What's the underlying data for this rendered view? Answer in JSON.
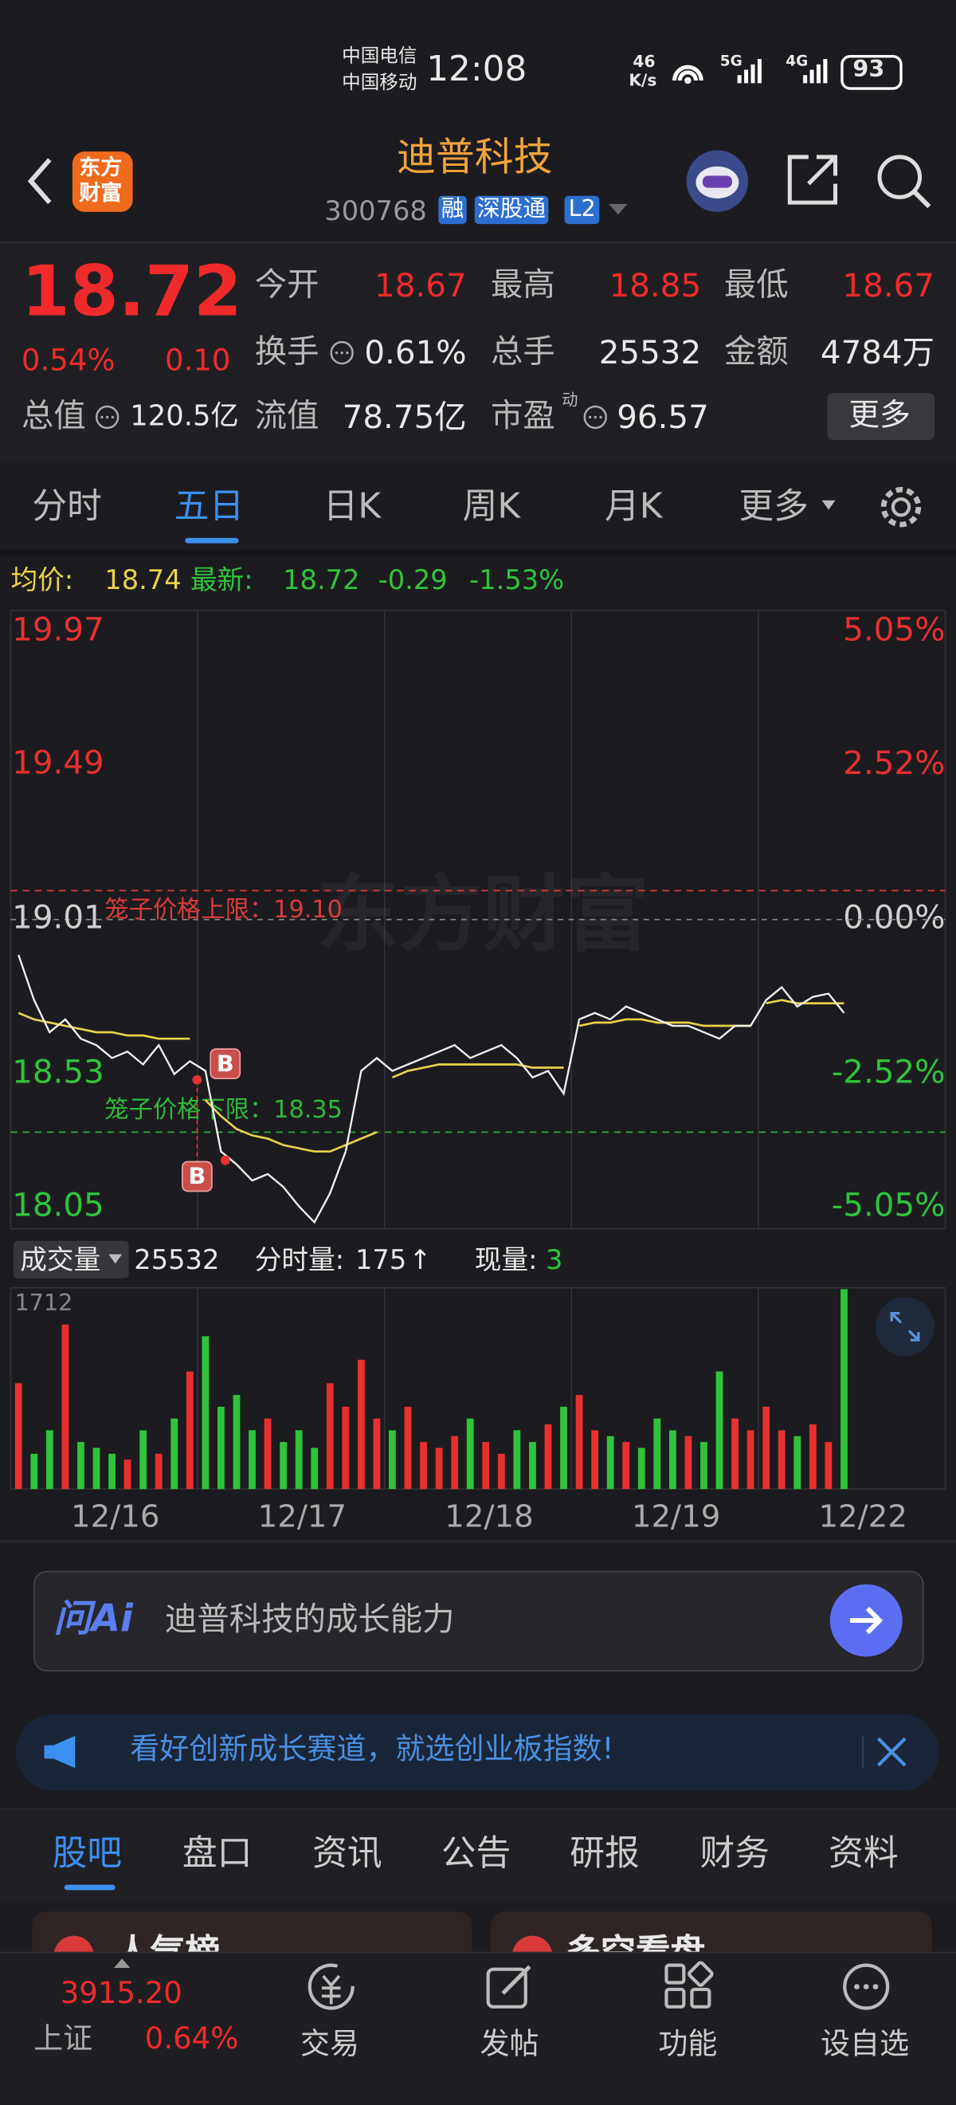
{
  "status_bar": {
    "carrier_1": "中国电信",
    "carrier_2": "中国移动",
    "time": "12:08",
    "speed": "46",
    "speed_unit": "K/s",
    "network_1": "5G",
    "network_2": "4G",
    "battery": "93"
  },
  "header": {
    "logo_1": "东方",
    "logo_2": "财富",
    "title": "迪普科技",
    "code": "300768",
    "badges": [
      "融",
      "深股通",
      "L2"
    ]
  },
  "quote": {
    "price": "18.72",
    "change_pct": "0.54%",
    "change": "0.10",
    "open_label": "今开",
    "open": "18.67",
    "high_label": "最高",
    "high": "18.85",
    "low_label": "最低",
    "low": "18.67",
    "turnover_label": "换手",
    "turnover": "0.61%",
    "volume_label": "总手",
    "volume": "25532",
    "amount_label": "金额",
    "amount": "4784万",
    "cap_label": "总值",
    "cap": "120.5亿",
    "float_label": "流值",
    "float": "78.75亿",
    "pe_label": "市盈",
    "pe_sup": "动",
    "pe": "96.57",
    "more": "更多"
  },
  "tabs": {
    "items": [
      "分时",
      "五日",
      "日K",
      "周K",
      "月K",
      "更多"
    ]
  },
  "chart_data": {
    "type": "line",
    "avg_label": "均价:",
    "avg_value": "18.74",
    "last_label": "最新:",
    "last_value": "18.72",
    "last_change": "-0.29",
    "last_change_pct": "-1.53%",
    "watermark": "东方财富",
    "categories": [
      "12/16",
      "12/17",
      "12/18",
      "12/19",
      "12/22"
    ],
    "ylim": [
      18.05,
      19.97
    ],
    "yticks": [
      19.97,
      19.49,
      19.01,
      18.53,
      18.05
    ],
    "y2lim": [
      -5.05,
      5.05
    ],
    "y2ticks": [
      {
        "value": 5.05,
        "label": "5.05%"
      },
      {
        "value": 2.52,
        "label": "2.52%"
      },
      {
        "value": 0,
        "label": "0.00%"
      },
      {
        "value": -2.52,
        "label": "-2.52%"
      },
      {
        "value": -5.05,
        "label": "-5.05%"
      }
    ],
    "reference_lines": [
      {
        "label": "笼子价格上限：19.10",
        "value": 19.1,
        "color": "#d83a3a"
      },
      {
        "label": "笼子价格下限：18.35",
        "value": 18.35,
        "color": "#2fb83a"
      }
    ],
    "trade_markers": [
      "B",
      "B"
    ],
    "series": [
      {
        "color": "#f0f0f0",
        "values": [
          [
            18.9,
            18.76,
            18.66,
            18.7,
            18.64,
            18.62,
            18.58,
            18.6,
            18.56,
            18.62,
            18.53,
            18.57
          ],
          [
            18.54,
            18.29,
            18.25,
            18.2,
            18.22,
            18.18,
            18.12,
            18.07,
            18.16,
            18.29,
            18.54,
            18.58
          ],
          [
            18.54,
            18.56,
            18.58,
            18.6,
            18.62,
            18.58,
            18.6,
            18.62,
            18.58,
            18.52,
            18.54,
            18.47
          ],
          [
            18.7,
            18.72,
            18.7,
            18.74,
            18.72,
            18.7,
            18.68,
            18.68,
            18.66,
            18.64,
            18.68,
            18.68
          ],
          [
            18.76,
            18.8,
            18.74,
            18.77,
            18.78,
            18.72
          ]
        ]
      },
      {
        "color": "#e8d24a",
        "values": [
          [
            18.72,
            18.7,
            18.69,
            18.68,
            18.67,
            18.66,
            18.66,
            18.65,
            18.65,
            18.64,
            18.64,
            18.64
          ],
          [
            18.45,
            18.4,
            18.36,
            18.34,
            18.33,
            18.31,
            18.3,
            18.29,
            18.29,
            18.31,
            18.33,
            18.35
          ],
          [
            18.52,
            18.54,
            18.55,
            18.56,
            18.56,
            18.56,
            18.56,
            18.56,
            18.56,
            18.55,
            18.55,
            18.55
          ],
          [
            18.68,
            18.69,
            18.69,
            18.7,
            18.7,
            18.69,
            18.69,
            18.69,
            18.68,
            18.68,
            18.68,
            18.68
          ],
          [
            18.75,
            18.76,
            18.75,
            18.75,
            18.75,
            18.75
          ]
        ]
      }
    ],
    "volume": {
      "label": "成交量",
      "total": "25532",
      "tick_label": "分时量:",
      "tick_value": "175",
      "tick_arrow": "↑",
      "now_label": "现量:",
      "now_value": "3",
      "ylim": [
        0,
        1712
      ],
      "yticks": [
        1712
      ],
      "values": [
        [
          900,
          300,
          500,
          1400,
          400,
          350,
          300,
          250,
          500,
          300,
          600,
          1000
        ],
        [
          1300,
          700,
          800,
          500,
          600,
          400,
          500,
          350,
          900,
          700,
          1100,
          600
        ],
        [
          500,
          700,
          400,
          350,
          450,
          600,
          400,
          300,
          500,
          400,
          550,
          700
        ],
        [
          800,
          500,
          450,
          400,
          350,
          600,
          500,
          450,
          400,
          1000,
          600,
          500
        ],
        [
          700,
          500,
          450,
          550,
          400,
          1700
        ]
      ]
    }
  },
  "ai_box": {
    "logo": "问Ai",
    "placeholder": "迪普科技的成长能力"
  },
  "banner": {
    "text": "看好创新成长赛道，就选创业板指数!"
  },
  "section_tabs": [
    "股吧",
    "盘口",
    "资讯",
    "公告",
    "研报",
    "财务",
    "资料"
  ],
  "cards": [
    "人气榜",
    "多空看盘"
  ],
  "bottom_nav": {
    "index_value": "3915.20",
    "index_name": "上证",
    "index_change": "0.64%",
    "items": [
      "交易",
      "发帖",
      "功能",
      "设自选"
    ]
  }
}
